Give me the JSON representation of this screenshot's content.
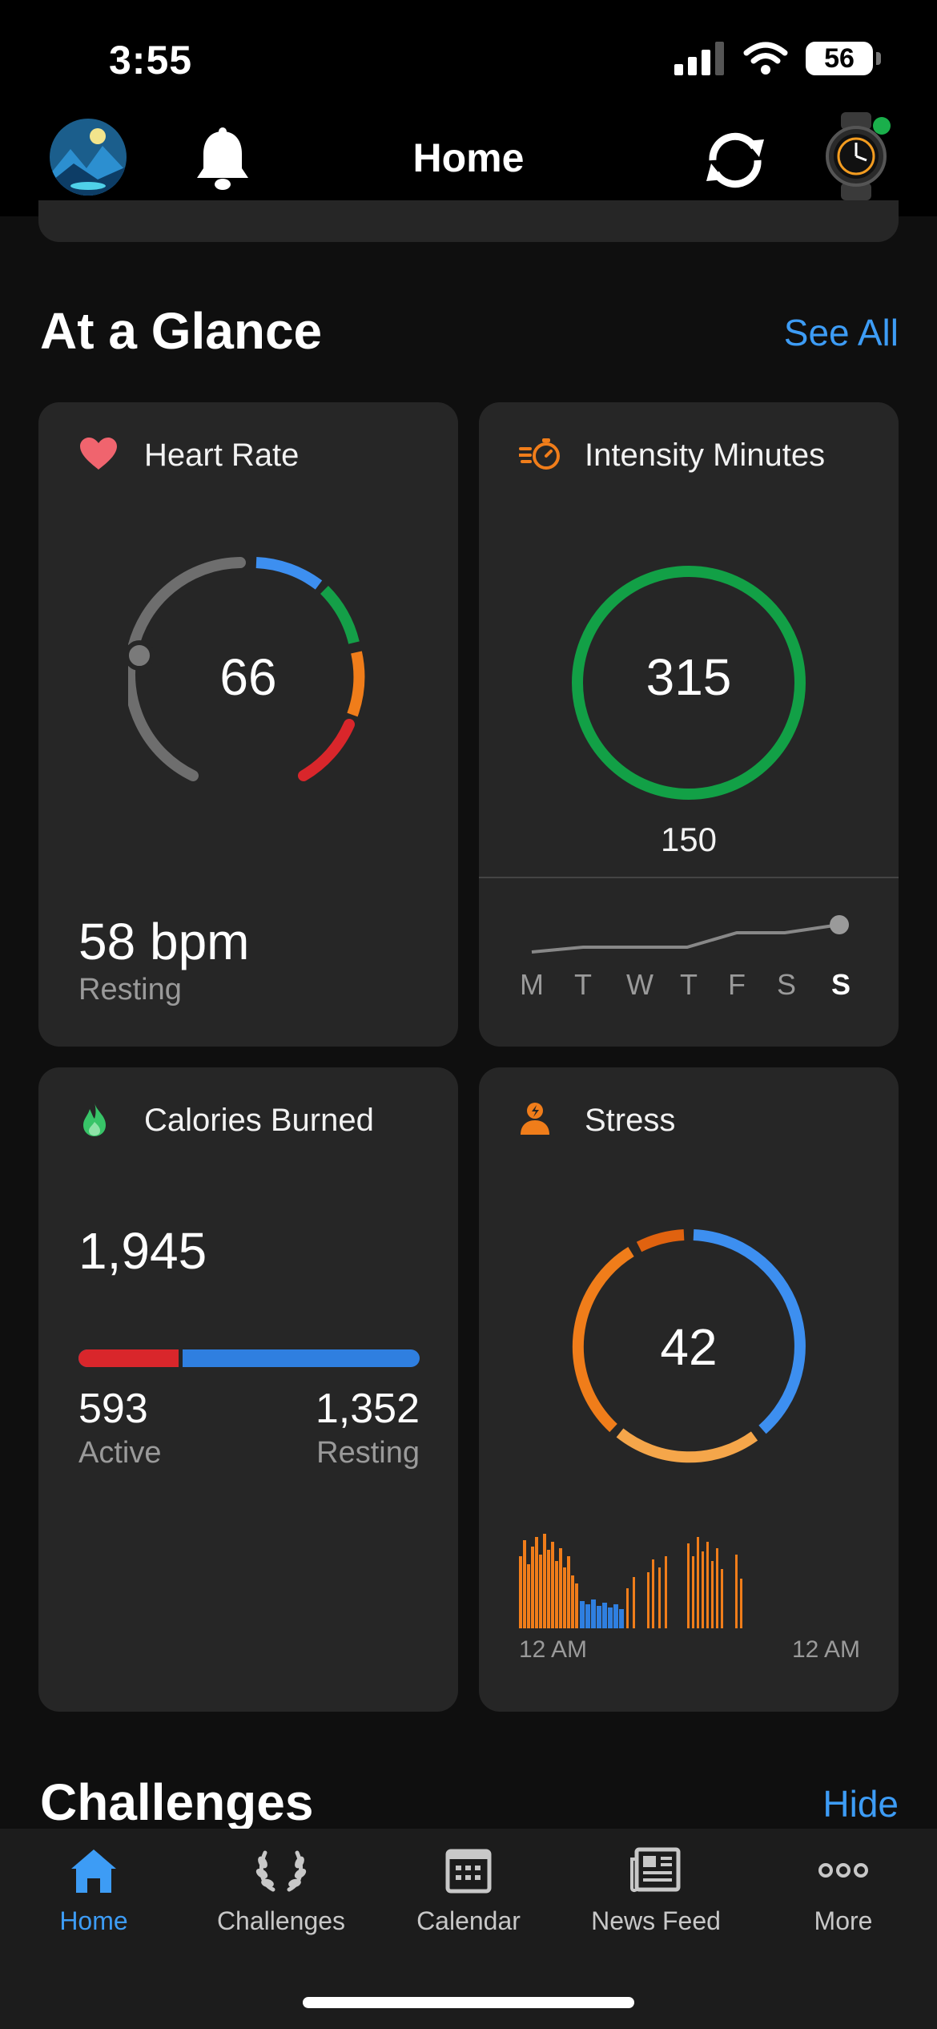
{
  "status_bar": {
    "time": "3:55",
    "battery": "56"
  },
  "header": {
    "title": "Home"
  },
  "at_a_glance": {
    "title": "At a Glance",
    "link": "See All"
  },
  "heart_rate": {
    "title": "Heart Rate",
    "current": "66",
    "resting_value": "58 bpm",
    "resting_label": "Resting"
  },
  "intensity": {
    "title": "Intensity Minutes",
    "value": "315",
    "goal": "150",
    "days": [
      "M",
      "T",
      "W",
      "T",
      "F",
      "S",
      "S"
    ]
  },
  "calories": {
    "title": "Calories Burned",
    "total": "1,945",
    "active_value": "593",
    "active_label": "Active",
    "resting_value": "1,352",
    "resting_label": "Resting",
    "active_fraction": 0.305
  },
  "stress": {
    "title": "Stress",
    "value": "42",
    "start_label": "12 AM",
    "end_label": "12 AM"
  },
  "challenges": {
    "title": "Challenges",
    "link": "Hide"
  },
  "nav": [
    {
      "label": "Home",
      "icon": "home-icon"
    },
    {
      "label": "Challenges",
      "icon": "laurel-icon"
    },
    {
      "label": "Calendar",
      "icon": "calendar-icon"
    },
    {
      "label": "News Feed",
      "icon": "news-icon"
    },
    {
      "label": "More",
      "icon": "more-icon"
    }
  ],
  "colors": {
    "accent": "#3d9cf5",
    "green": "#12a046",
    "orange": "#f07d1a",
    "red": "#d9262b"
  }
}
